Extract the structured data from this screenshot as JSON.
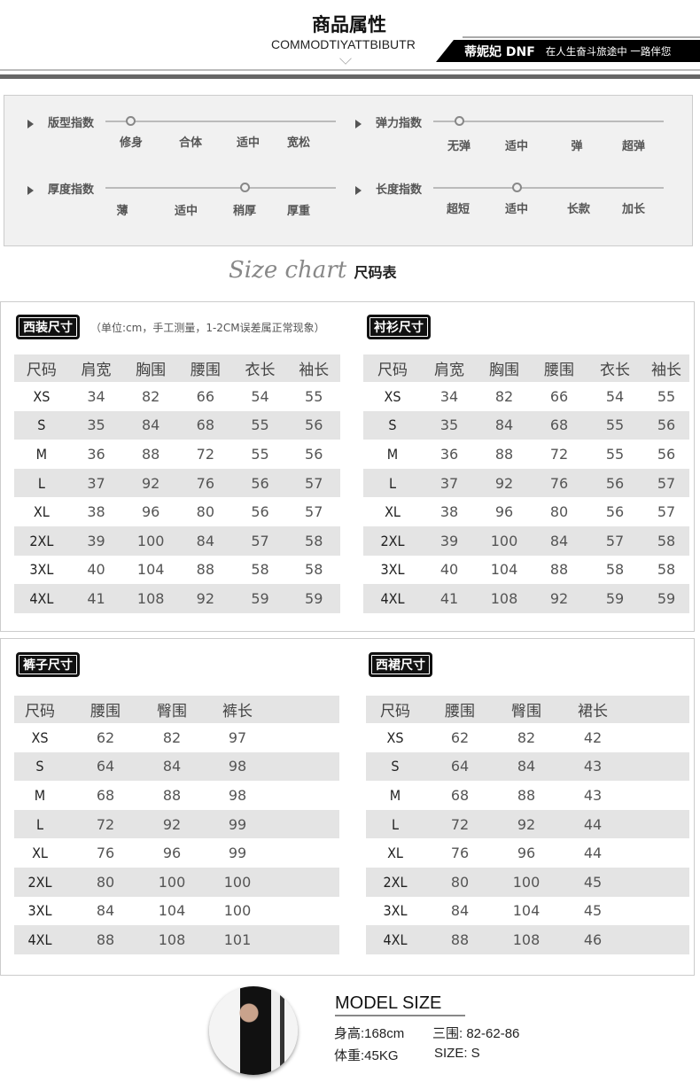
{
  "header": {
    "title": "商品属性",
    "subtitle": "COMMODTIYATTBIBUTR",
    "brand": "蒂妮妃 DNF",
    "slogan": "在人生奋斗旅途中 一路伴您"
  },
  "attributes": [
    {
      "label": "版型指数",
      "options": [
        "修身",
        "合体",
        "适中",
        "宽松"
      ],
      "selected": "修身"
    },
    {
      "label": "弹力指数",
      "options": [
        "无弹",
        "适中",
        "弹",
        "超弹"
      ],
      "selected": "无弹"
    },
    {
      "label": "厚度指数",
      "options": [
        "薄",
        "适中",
        "稍厚",
        "厚重"
      ],
      "selected": "稍厚"
    },
    {
      "label": "长度指数",
      "options": [
        "超短",
        "适中",
        "长款",
        "加长"
      ],
      "selected": "适中"
    }
  ],
  "size_chart": {
    "title_en": "Size chart",
    "title_cn": "尺码表"
  },
  "tables": [
    {
      "tag": "西装尺寸",
      "note": "（单位:cm，手工测量，1-2CM误差属正常现象）",
      "headers": [
        "尺码",
        "肩宽",
        "胸围",
        "腰围",
        "衣长",
        "袖长"
      ],
      "rows": [
        [
          "XS",
          "34",
          "82",
          "66",
          "54",
          "55"
        ],
        [
          "S",
          "35",
          "84",
          "68",
          "55",
          "56"
        ],
        [
          "M",
          "36",
          "88",
          "72",
          "55",
          "56"
        ],
        [
          "L",
          "37",
          "92",
          "76",
          "56",
          "57"
        ],
        [
          "XL",
          "38",
          "96",
          "80",
          "56",
          "57"
        ],
        [
          "2XL",
          "39",
          "100",
          "84",
          "57",
          "58"
        ],
        [
          "3XL",
          "40",
          "104",
          "88",
          "58",
          "58"
        ],
        [
          "4XL",
          "41",
          "108",
          "92",
          "59",
          "59"
        ]
      ]
    },
    {
      "tag": "衬衫尺寸",
      "note": "",
      "headers": [
        "尺码",
        "肩宽",
        "胸围",
        "腰围",
        "衣长",
        "袖长"
      ],
      "rows": [
        [
          "XS",
          "34",
          "82",
          "66",
          "54",
          "55"
        ],
        [
          "S",
          "35",
          "84",
          "68",
          "55",
          "56"
        ],
        [
          "M",
          "36",
          "88",
          "72",
          "55",
          "56"
        ],
        [
          "L",
          "37",
          "92",
          "76",
          "56",
          "57"
        ],
        [
          "XL",
          "38",
          "96",
          "80",
          "56",
          "57"
        ],
        [
          "2XL",
          "39",
          "100",
          "84",
          "57",
          "58"
        ],
        [
          "3XL",
          "40",
          "104",
          "88",
          "58",
          "58"
        ],
        [
          "4XL",
          "41",
          "108",
          "92",
          "59",
          "59"
        ]
      ]
    },
    {
      "tag": "裤子尺寸",
      "note": "",
      "headers": [
        "尺码",
        "腰围",
        "臀围",
        "裤长"
      ],
      "rows": [
        [
          "XS",
          "62",
          "82",
          "97"
        ],
        [
          "S",
          "64",
          "84",
          "98"
        ],
        [
          "M",
          "68",
          "88",
          "98"
        ],
        [
          "L",
          "72",
          "92",
          "99"
        ],
        [
          "XL",
          "76",
          "96",
          "99"
        ],
        [
          "2XL",
          "80",
          "100",
          "100"
        ],
        [
          "3XL",
          "84",
          "104",
          "100"
        ],
        [
          "4XL",
          "88",
          "108",
          "101"
        ]
      ]
    },
    {
      "tag": "西裙尺寸",
      "note": "",
      "headers": [
        "尺码",
        "腰围",
        "臀围",
        "裙长"
      ],
      "rows": [
        [
          "XS",
          "62",
          "82",
          "42"
        ],
        [
          "S",
          "64",
          "84",
          "43"
        ],
        [
          "M",
          "68",
          "88",
          "43"
        ],
        [
          "L",
          "72",
          "92",
          "44"
        ],
        [
          "XL",
          "76",
          "96",
          "44"
        ],
        [
          "2XL",
          "80",
          "100",
          "45"
        ],
        [
          "3XL",
          "84",
          "104",
          "45"
        ],
        [
          "4XL",
          "88",
          "108",
          "46"
        ]
      ]
    }
  ],
  "model": {
    "title": "MODEL SIZE",
    "height": "身高:168cm",
    "measurements": "三围: 82-62-86",
    "weight": "体重:45KG",
    "size": "SIZE: S"
  }
}
